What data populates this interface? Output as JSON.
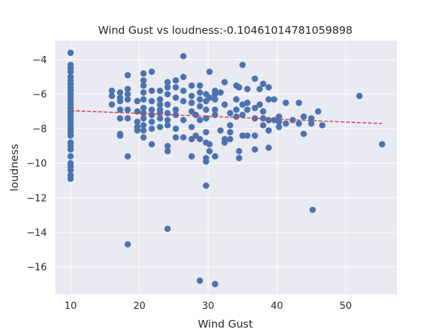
{
  "chart_data": {
    "type": "scatter",
    "title": "Wind Gust vs loudness:-0.10461014781059898",
    "xlabel": "Wind Gust",
    "ylabel": "loudness",
    "xlim": [
      7.75,
      57.45
    ],
    "ylim": [
      -17.6,
      -2.9
    ],
    "xticks": [
      10,
      20,
      30,
      40,
      50
    ],
    "xtick_labels": [
      "10",
      "20",
      "30",
      "40",
      "50"
    ],
    "yticks": [
      -16,
      -14,
      -12,
      -10,
      -8,
      -6,
      -4
    ],
    "ytick_labels": [
      "−16",
      "−14",
      "−12",
      "−10",
      "−8",
      "−6",
      "−4"
    ],
    "grid": true,
    "colors": {
      "background": "#eaeaf2",
      "grid": "#ffffff",
      "points": "#4c72b0",
      "trend": "#c44e52"
    },
    "trend_line": {
      "x": [
        10,
        55.3
      ],
      "y": [
        -6.95,
        -7.7
      ],
      "style": "dashed"
    },
    "points": [
      [
        10,
        -3.6
      ],
      [
        10,
        -4.3
      ],
      [
        10,
        -4.5
      ],
      [
        10,
        -4.7
      ],
      [
        10,
        -5.0
      ],
      [
        10,
        -5.2
      ],
      [
        10,
        -5.4
      ],
      [
        10,
        -5.6
      ],
      [
        10,
        -5.8
      ],
      [
        10,
        -6.0
      ],
      [
        10,
        -6.2
      ],
      [
        10,
        -6.4
      ],
      [
        10,
        -6.6
      ],
      [
        10,
        -6.8
      ],
      [
        10,
        -7.0
      ],
      [
        10,
        -7.2
      ],
      [
        10,
        -7.4
      ],
      [
        10,
        -7.6
      ],
      [
        10,
        -7.8
      ],
      [
        10,
        -8.0
      ],
      [
        10,
        -8.2
      ],
      [
        10,
        -8.4
      ],
      [
        10,
        -8.8
      ],
      [
        10,
        -9.0
      ],
      [
        10,
        -9.2
      ],
      [
        10,
        -9.6
      ],
      [
        10,
        -10.0
      ],
      [
        10,
        -10.2
      ],
      [
        10,
        -10.4
      ],
      [
        10,
        -10.7
      ],
      [
        10,
        -10.9
      ],
      [
        16,
        -5.8
      ],
      [
        16,
        -6.1
      ],
      [
        16,
        -6.6
      ],
      [
        17.2,
        -5.9
      ],
      [
        17.2,
        -6.2
      ],
      [
        17.2,
        -6.4
      ],
      [
        17.2,
        -6.9
      ],
      [
        17.2,
        -7.4
      ],
      [
        17.2,
        -8.3
      ],
      [
        17.2,
        -8.4
      ],
      [
        18.3,
        -4.9
      ],
      [
        18.3,
        -5.7
      ],
      [
        18.3,
        -6.0
      ],
      [
        18.3,
        -6.3
      ],
      [
        18.3,
        -6.9
      ],
      [
        18.3,
        -7.4
      ],
      [
        18.3,
        -9.6
      ],
      [
        18.3,
        -14.7
      ],
      [
        19.7,
        -6.4
      ],
      [
        19.7,
        -7.0
      ],
      [
        19.7,
        -7.6
      ],
      [
        19.7,
        -7.9
      ],
      [
        19.7,
        -8.1
      ],
      [
        20.6,
        -4.8
      ],
      [
        20.6,
        -5.2
      ],
      [
        20.6,
        -5.5
      ],
      [
        20.6,
        -5.9
      ],
      [
        20.6,
        -6.3
      ],
      [
        20.6,
        -6.8
      ],
      [
        20.6,
        -7.1
      ],
      [
        20.6,
        -7.4
      ],
      [
        20.6,
        -7.8
      ],
      [
        20.6,
        -8.1
      ],
      [
        20.6,
        -8.5
      ],
      [
        21.8,
        -4.7
      ],
      [
        21.8,
        -5.8
      ],
      [
        21.8,
        -6.4
      ],
      [
        21.8,
        -6.9
      ],
      [
        21.8,
        -7.2
      ],
      [
        21.8,
        -7.6
      ],
      [
        21.8,
        -8.0
      ],
      [
        21.8,
        -8.9
      ],
      [
        23,
        -5.8
      ],
      [
        23,
        -6.3
      ],
      [
        23,
        -6.6
      ],
      [
        23,
        -6.9
      ],
      [
        23,
        -7.1
      ],
      [
        23,
        -7.4
      ],
      [
        23,
        -7.9
      ],
      [
        24.1,
        -5.3
      ],
      [
        24.1,
        -5.6
      ],
      [
        24.1,
        -6.0
      ],
      [
        24.1,
        -6.6
      ],
      [
        24.1,
        -7.1
      ],
      [
        24.1,
        -7.5
      ],
      [
        24.1,
        -7.8
      ],
      [
        24.1,
        -9.0
      ],
      [
        24.1,
        -9.3
      ],
      [
        24.1,
        -13.8
      ],
      [
        25.3,
        -5.2
      ],
      [
        25.3,
        -5.6
      ],
      [
        25.3,
        -6.2
      ],
      [
        25.3,
        -6.9
      ],
      [
        25.3,
        -7.2
      ],
      [
        25.3,
        -8.0
      ],
      [
        25.3,
        -8.5
      ],
      [
        26.4,
        -3.8
      ],
      [
        26.4,
        -5.0
      ],
      [
        26.4,
        -5.8
      ],
      [
        26.4,
        -6.4
      ],
      [
        26.4,
        -7.5
      ],
      [
        26.4,
        -8.5
      ],
      [
        27.6,
        -5.5
      ],
      [
        27.6,
        -6.1
      ],
      [
        27.6,
        -6.5
      ],
      [
        27.6,
        -7.0
      ],
      [
        27.6,
        -7.9
      ],
      [
        27.6,
        -8.6
      ],
      [
        27.6,
        -9.6
      ],
      [
        28.2,
        -7.2
      ],
      [
        28.2,
        -8.4
      ],
      [
        28.8,
        -5.5
      ],
      [
        28.8,
        -5.9
      ],
      [
        28.8,
        -6.3
      ],
      [
        28.8,
        -6.7
      ],
      [
        28.8,
        -7.5
      ],
      [
        28.8,
        -8.6
      ],
      [
        28.8,
        -16.8
      ],
      [
        29.7,
        -6.0
      ],
      [
        29.7,
        -6.4
      ],
      [
        29.7,
        -6.9
      ],
      [
        29.7,
        -7.4
      ],
      [
        29.7,
        -8.2
      ],
      [
        29.7,
        -8.8
      ],
      [
        29.7,
        -9.7
      ],
      [
        29.7,
        -9.9
      ],
      [
        29.7,
        -11.3
      ],
      [
        30.2,
        -4.7
      ],
      [
        30.2,
        -6.2
      ],
      [
        30.2,
        -8.9
      ],
      [
        30.2,
        -9.3
      ],
      [
        31,
        -5.8
      ],
      [
        31,
        -6.0
      ],
      [
        31,
        -6.3
      ],
      [
        31,
        -6.9
      ],
      [
        31,
        -7.2
      ],
      [
        31,
        -9.6
      ],
      [
        31,
        -17.0
      ],
      [
        31.8,
        -5.9
      ],
      [
        31.8,
        -8.1
      ],
      [
        32.4,
        -5.3
      ],
      [
        32.4,
        -6.6
      ],
      [
        32.4,
        -8.6
      ],
      [
        32.4,
        -8.8
      ],
      [
        33.2,
        -7.1
      ],
      [
        33.2,
        -7.8
      ],
      [
        33.2,
        -8.2
      ],
      [
        33.2,
        -8.6
      ],
      [
        34.1,
        -5.5
      ],
      [
        34.1,
        -6.3
      ],
      [
        34.1,
        -6.9
      ],
      [
        34.1,
        -7.3
      ],
      [
        34.5,
        -5.6
      ],
      [
        34.5,
        -9.3
      ],
      [
        34.5,
        -9.7
      ],
      [
        35,
        -4.3
      ],
      [
        35,
        -6.6
      ],
      [
        35,
        -7.2
      ],
      [
        35,
        -8.4
      ],
      [
        35.7,
        -5.7
      ],
      [
        35.7,
        -6.5
      ],
      [
        35.7,
        -6.9
      ],
      [
        35.7,
        -8.4
      ],
      [
        36.8,
        -5.1
      ],
      [
        36.8,
        -6.8
      ],
      [
        36.8,
        -7.4
      ],
      [
        36.8,
        -8.4
      ],
      [
        36.8,
        -9.2
      ],
      [
        37.5,
        -5.7
      ],
      [
        37.5,
        -6.6
      ],
      [
        38,
        -5.4
      ],
      [
        38,
        -7.0
      ],
      [
        38,
        -7.4
      ],
      [
        38,
        -7.8
      ],
      [
        38.8,
        -5.6
      ],
      [
        38.8,
        -6.3
      ],
      [
        38.8,
        -7.5
      ],
      [
        38.8,
        -8.1
      ],
      [
        38.8,
        -9.1
      ],
      [
        39.6,
        -6.3
      ],
      [
        39.6,
        -7.5
      ],
      [
        40.3,
        -7.3
      ],
      [
        40.3,
        -7.6
      ],
      [
        40.3,
        -7.9
      ],
      [
        41.3,
        -6.5
      ],
      [
        41.3,
        -7.7
      ],
      [
        42.3,
        -7.5
      ],
      [
        43.2,
        -6.5
      ],
      [
        43.2,
        -7.7
      ],
      [
        43.9,
        -7.3
      ],
      [
        43.9,
        -8.3
      ],
      [
        45,
        -7.4
      ],
      [
        45,
        -7.7
      ],
      [
        45.2,
        -12.7
      ],
      [
        46,
        -7.0
      ],
      [
        46.6,
        -7.8
      ],
      [
        52,
        -6.1
      ],
      [
        55.3,
        -8.9
      ]
    ]
  }
}
